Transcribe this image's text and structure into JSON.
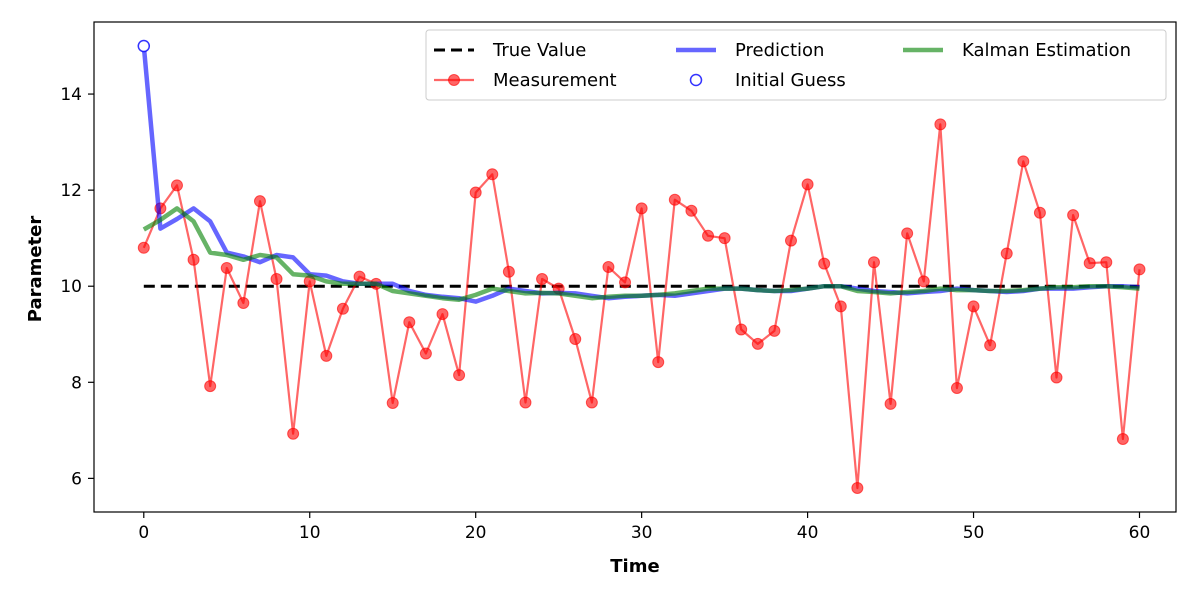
{
  "chart_data": {
    "type": "line",
    "xlabel": "Time",
    "ylabel": "Parameter",
    "xlim": [
      -3,
      62.2
    ],
    "ylim": [
      5.3,
      15.5
    ],
    "x_ticks": [
      0,
      10,
      20,
      30,
      40,
      50,
      60
    ],
    "y_ticks": [
      6,
      8,
      10,
      12,
      14
    ],
    "grid": false,
    "legend_position": "top-right",
    "series": [
      {
        "name": "True Value",
        "style": "dashed",
        "color": "#000000",
        "x": [
          0,
          60
        ],
        "values": [
          10,
          10
        ]
      },
      {
        "name": "Measurement",
        "style": "line-markers",
        "color": "#ff0000",
        "x": [
          0,
          1,
          2,
          3,
          4,
          5,
          6,
          7,
          8,
          9,
          10,
          11,
          12,
          13,
          14,
          15,
          16,
          17,
          18,
          19,
          20,
          21,
          22,
          23,
          24,
          25,
          26,
          27,
          28,
          29,
          30,
          31,
          32,
          33,
          34,
          35,
          36,
          37,
          38,
          39,
          40,
          41,
          42,
          43,
          44,
          45,
          46,
          47,
          48,
          49,
          50,
          51,
          52,
          53,
          54,
          55,
          56,
          57,
          58,
          59,
          60
        ],
        "values": [
          10.8,
          11.62,
          12.1,
          10.55,
          7.92,
          10.38,
          9.65,
          11.77,
          10.15,
          6.93,
          10.1,
          8.55,
          9.53,
          10.2,
          10.05,
          7.57,
          9.25,
          8.6,
          9.42,
          8.15,
          11.95,
          12.33,
          10.3,
          7.58,
          10.15,
          9.95,
          8.9,
          7.58,
          10.4,
          10.08,
          11.62,
          8.42,
          11.8,
          11.57,
          11.05,
          11.0,
          9.1,
          8.8,
          9.07,
          10.95,
          12.12,
          10.47,
          9.58,
          5.8,
          10.5,
          7.55,
          11.1,
          10.1,
          13.37,
          7.88,
          9.58,
          8.77,
          10.68,
          12.6,
          11.53,
          8.1,
          11.48,
          10.48,
          10.5,
          6.82,
          10.35
        ]
      },
      {
        "name": "Prediction",
        "style": "line",
        "color": "#0000ff",
        "x": [
          0,
          1,
          2,
          3,
          4,
          5,
          6,
          7,
          8,
          9,
          10,
          11,
          12,
          13,
          14,
          15,
          16,
          17,
          18,
          19,
          20,
          21,
          22,
          23,
          24,
          25,
          26,
          27,
          28,
          29,
          30,
          31,
          32,
          33,
          34,
          35,
          36,
          37,
          38,
          39,
          40,
          41,
          42,
          43,
          44,
          45,
          46,
          47,
          48,
          49,
          50,
          51,
          52,
          53,
          54,
          55,
          56,
          57,
          58,
          59,
          60
        ],
        "values": [
          15.0,
          11.2,
          11.4,
          11.62,
          11.35,
          10.7,
          10.62,
          10.5,
          10.65,
          10.6,
          10.25,
          10.22,
          10.1,
          10.05,
          10.05,
          10.05,
          9.9,
          9.82,
          9.78,
          9.75,
          9.68,
          9.8,
          9.95,
          9.9,
          9.85,
          9.86,
          9.85,
          9.8,
          9.75,
          9.78,
          9.8,
          9.82,
          9.8,
          9.85,
          9.9,
          9.95,
          9.95,
          9.92,
          9.9,
          9.9,
          9.95,
          10.0,
          10.0,
          9.95,
          9.9,
          9.88,
          9.85,
          9.88,
          9.9,
          9.95,
          9.92,
          9.9,
          9.88,
          9.9,
          9.95,
          9.95,
          9.95,
          9.98,
          10.0,
          10.0,
          9.98
        ]
      },
      {
        "name": "Initial Guess",
        "style": "marker",
        "color": "#0000ff",
        "x": [
          0
        ],
        "values": [
          15.0
        ]
      },
      {
        "name": "Kalman Estimation",
        "style": "line",
        "color": "#008000",
        "x": [
          0,
          1,
          2,
          3,
          4,
          5,
          6,
          7,
          8,
          9,
          10,
          11,
          12,
          13,
          14,
          15,
          16,
          17,
          18,
          19,
          20,
          21,
          22,
          23,
          24,
          25,
          26,
          27,
          28,
          29,
          30,
          31,
          32,
          33,
          34,
          35,
          36,
          37,
          38,
          39,
          40,
          41,
          42,
          43,
          44,
          45,
          46,
          47,
          48,
          49,
          50,
          51,
          52,
          53,
          54,
          55,
          56,
          57,
          58,
          59,
          60
        ],
        "values": [
          11.18,
          11.38,
          11.62,
          11.35,
          10.7,
          10.65,
          10.55,
          10.65,
          10.6,
          10.25,
          10.22,
          10.1,
          10.05,
          10.05,
          10.05,
          9.9,
          9.85,
          9.8,
          9.75,
          9.72,
          9.82,
          9.95,
          9.9,
          9.85,
          9.86,
          9.85,
          9.8,
          9.75,
          9.78,
          9.8,
          9.8,
          9.82,
          9.85,
          9.9,
          9.95,
          9.95,
          9.95,
          9.92,
          9.9,
          9.92,
          9.95,
          10.0,
          10.0,
          9.9,
          9.88,
          9.85,
          9.88,
          9.9,
          9.95,
          9.92,
          9.92,
          9.9,
          9.9,
          9.92,
          9.95,
          9.98,
          9.98,
          10.0,
          10.0,
          9.98,
          9.95
        ]
      }
    ]
  }
}
